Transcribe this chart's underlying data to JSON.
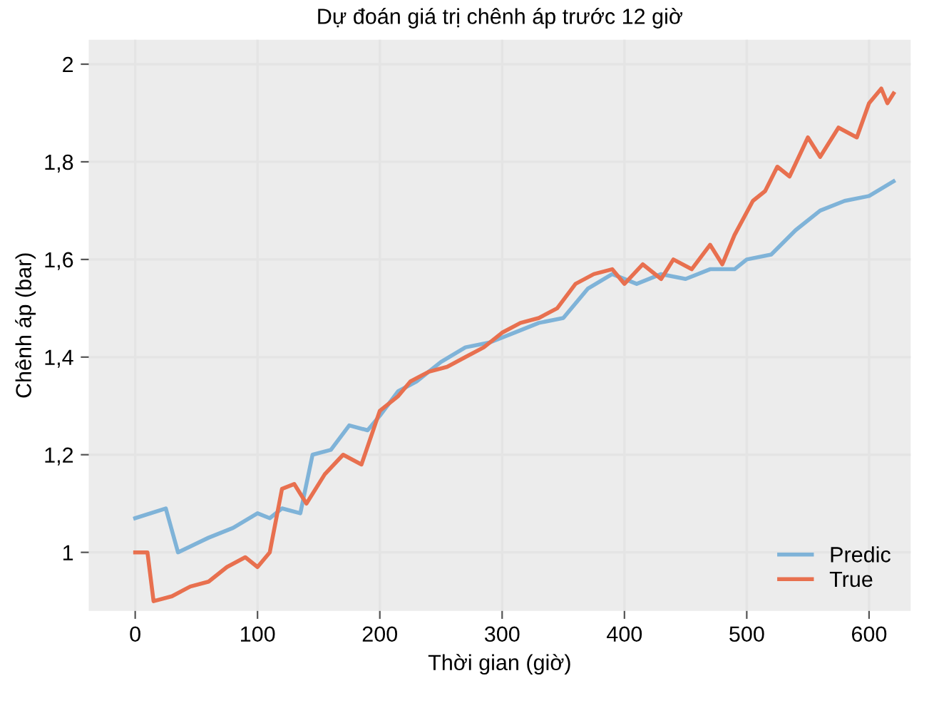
{
  "chart_data": {
    "type": "line",
    "title": "Dự đoán giá trị chênh áp trước 12 giờ",
    "xlabel": "Thời gian (giờ)",
    "ylabel": "Chênh áp (bar)",
    "xlim": [
      -38,
      634
    ],
    "xticks": [
      0,
      100,
      200,
      300,
      400,
      500,
      600
    ],
    "ylim": [
      0.88,
      2.05
    ],
    "yticks": [
      {
        "value": 1,
        "label": "1"
      },
      {
        "value": 1.2,
        "label": "1,2"
      },
      {
        "value": 1.4,
        "label": "1,4"
      },
      {
        "value": 1.6,
        "label": "1,6"
      },
      {
        "value": 1.8,
        "label": "1,8"
      },
      {
        "value": 2,
        "label": "2"
      }
    ],
    "grid": true,
    "legend": "bottom right",
    "line_style": "solid",
    "marker": "none",
    "series": [
      {
        "name": "Predic",
        "color": "#7fb3d8",
        "x": [
          0,
          25,
          35,
          60,
          80,
          100,
          110,
          120,
          135,
          145,
          160,
          175,
          190,
          200,
          215,
          230,
          250,
          270,
          290,
          310,
          330,
          350,
          370,
          390,
          410,
          430,
          450,
          470,
          490,
          500,
          520,
          540,
          560,
          580,
          600,
          620
        ],
        "values": [
          1.07,
          1.09,
          1.0,
          1.03,
          1.05,
          1.08,
          1.07,
          1.09,
          1.08,
          1.2,
          1.21,
          1.26,
          1.25,
          1.28,
          1.33,
          1.35,
          1.39,
          1.42,
          1.43,
          1.45,
          1.47,
          1.48,
          1.54,
          1.57,
          1.55,
          1.57,
          1.56,
          1.58,
          1.58,
          1.6,
          1.61,
          1.66,
          1.7,
          1.72,
          1.73,
          1.76
        ]
      },
      {
        "name": "True",
        "color": "#e8704f",
        "x": [
          0,
          10,
          15,
          30,
          45,
          60,
          75,
          90,
          100,
          110,
          120,
          130,
          140,
          155,
          170,
          185,
          200,
          215,
          225,
          240,
          255,
          270,
          285,
          300,
          315,
          330,
          345,
          360,
          375,
          390,
          400,
          415,
          430,
          440,
          455,
          470,
          480,
          490,
          505,
          515,
          525,
          535,
          550,
          560,
          575,
          590,
          600,
          610,
          615,
          620
        ],
        "values": [
          1.0,
          1.0,
          0.9,
          0.91,
          0.93,
          0.94,
          0.97,
          0.99,
          0.97,
          1.0,
          1.13,
          1.14,
          1.1,
          1.16,
          1.2,
          1.18,
          1.29,
          1.32,
          1.35,
          1.37,
          1.38,
          1.4,
          1.42,
          1.45,
          1.47,
          1.48,
          1.5,
          1.55,
          1.57,
          1.58,
          1.55,
          1.59,
          1.56,
          1.6,
          1.58,
          1.63,
          1.59,
          1.65,
          1.72,
          1.74,
          1.79,
          1.77,
          1.85,
          1.81,
          1.87,
          1.85,
          1.92,
          1.95,
          1.92,
          1.94
        ]
      }
    ]
  }
}
